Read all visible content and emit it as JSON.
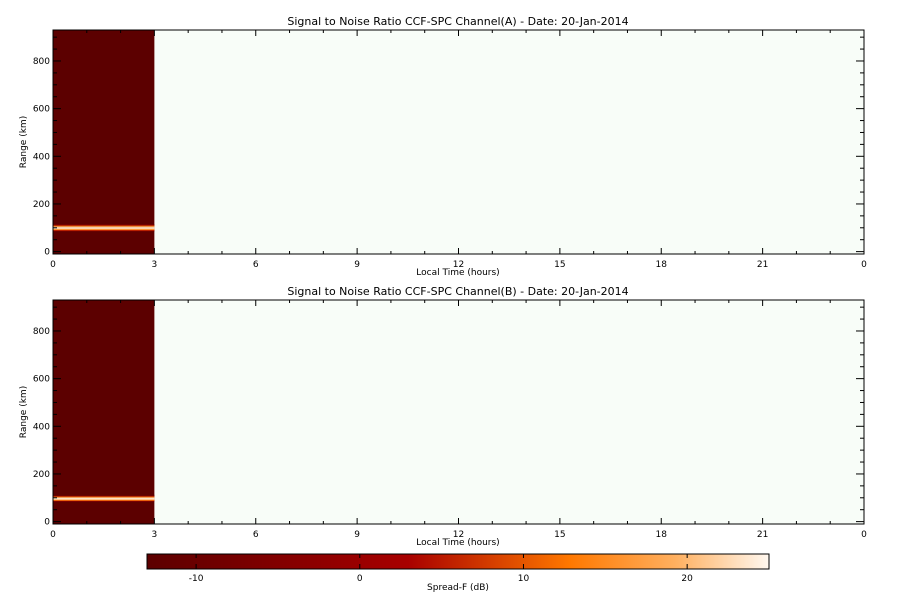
{
  "colors": {
    "background": "#ffffff",
    "plot_background": "#f8fdf8",
    "low": "#5c0000",
    "mid": "#a80000",
    "orange": "#ff8000",
    "high": "#fff8f0"
  },
  "colorbar": {
    "label": "Spread-F (dB)",
    "range": [
      -13,
      25
    ],
    "ticks": [
      -10,
      0,
      10,
      20
    ]
  },
  "chart_data": [
    {
      "type": "heatmap",
      "title": "Signal to Noise Ratio CCF-SPC Channel(A) - Date: 20-Jan-2014",
      "xlabel": "Local Time (hours)",
      "ylabel": "Range (km)",
      "xlim": [
        0,
        24
      ],
      "ylim": [
        -10,
        930
      ],
      "xticks": [
        "0",
        "3",
        "6",
        "9",
        "12",
        "15",
        "18",
        "21",
        "0"
      ],
      "yticks": [
        0,
        200,
        400,
        600,
        800
      ],
      "data_x_range": [
        0,
        3
      ],
      "background_level_db": -13,
      "echo_layer": {
        "range_km": [
          85,
          115
        ],
        "peak_range_km": 100,
        "peak_level_db": 24
      }
    },
    {
      "type": "heatmap",
      "title": "Signal to Noise Ratio CCF-SPC Channel(B) - Date: 20-Jan-2014",
      "xlabel": "Local Time (hours)",
      "ylabel": "Range (km)",
      "xlim": [
        0,
        24
      ],
      "ylim": [
        -10,
        930
      ],
      "xticks": [
        "0",
        "3",
        "6",
        "9",
        "12",
        "15",
        "18",
        "21",
        "0"
      ],
      "yticks": [
        0,
        200,
        400,
        600,
        800
      ],
      "data_x_range": [
        0,
        3
      ],
      "background_level_db": -13,
      "echo_layer": {
        "range_km": [
          85,
          112
        ],
        "peak_range_km": 97,
        "peak_level_db": 24
      }
    }
  ]
}
